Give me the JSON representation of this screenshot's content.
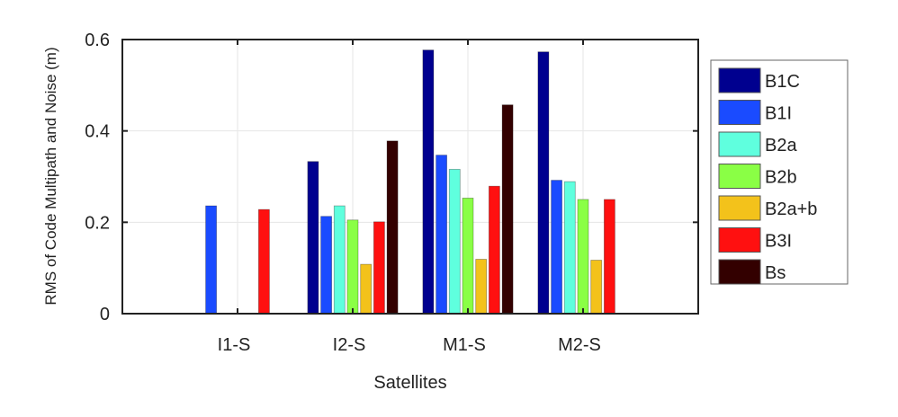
{
  "chart_data": {
    "type": "bar",
    "title": "",
    "xlabel": "Satellites",
    "ylabel": "RMS of Code Multipath and Noise (m)",
    "ylim": [
      0,
      0.6
    ],
    "yticks": [
      "0",
      "0.2",
      "0.4",
      "0.6"
    ],
    "ytick_values": [
      0,
      0.2,
      0.4,
      0.6
    ],
    "grid": true,
    "legend_position": "outside-right",
    "categories": [
      "I1-S",
      "I2-S",
      "M1-S",
      "M2-S"
    ],
    "series": [
      {
        "name": "B1C",
        "color": "#00008f",
        "values": [
          null,
          0.333,
          0.577,
          0.573
        ]
      },
      {
        "name": "B1I",
        "color": "#1a4bff",
        "values": [
          0.236,
          0.213,
          0.347,
          0.292
        ]
      },
      {
        "name": "B2a",
        "color": "#5fffde",
        "values": [
          null,
          0.236,
          0.316,
          0.289
        ]
      },
      {
        "name": "B2b",
        "color": "#8aff45",
        "values": [
          null,
          0.205,
          0.253,
          0.25
        ]
      },
      {
        "name": "B2a+b",
        "color": "#f3c21b",
        "values": [
          null,
          0.108,
          0.119,
          0.117
        ]
      },
      {
        "name": "B3I",
        "color": "#ff1010",
        "values": [
          0.228,
          0.201,
          0.279,
          0.25
        ]
      },
      {
        "name": "Bs",
        "color": "#330000",
        "values": [
          null,
          0.378,
          0.457,
          null
        ]
      }
    ]
  }
}
